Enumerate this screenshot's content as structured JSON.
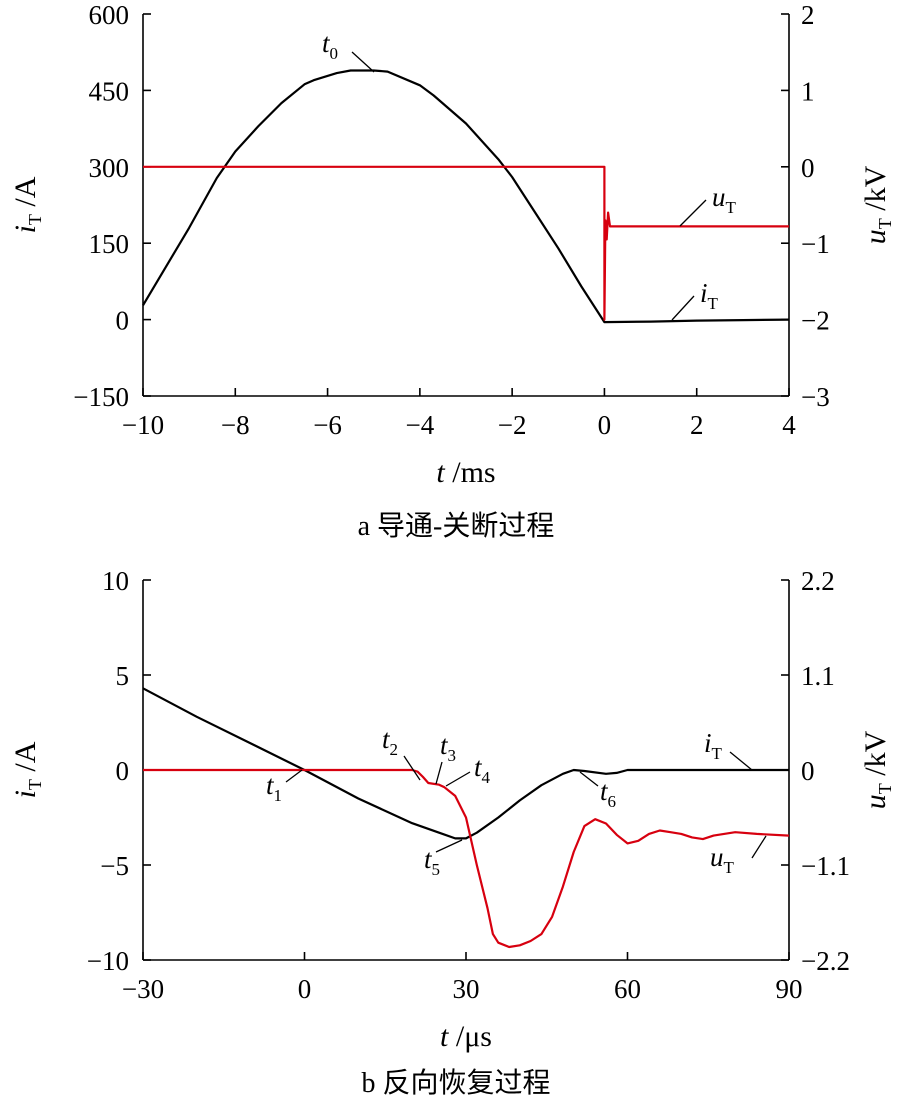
{
  "chart_data": [
    {
      "id": "a",
      "type": "line",
      "caption": "a  导通-关断过程",
      "xlabel": {
        "var": "t",
        "unit": "/ms"
      },
      "ylabel_left": {
        "var": "i",
        "sub": "T",
        "unit": "/A"
      },
      "ylabel_right": {
        "var": "u",
        "sub": "T",
        "unit": "/kV"
      },
      "xlim": [
        -10,
        4
      ],
      "xticks": [
        "−10",
        "−8",
        "−6",
        "−4",
        "−2",
        "0",
        "2",
        "4"
      ],
      "xtick_values": [
        -10,
        -8,
        -6,
        -4,
        -2,
        0,
        2,
        4
      ],
      "ylim_left": [
        -150,
        600
      ],
      "yticks_left": [
        "600",
        "450",
        "300",
        "150",
        "0",
        "−150"
      ],
      "ytick_values_left": [
        600,
        450,
        300,
        150,
        0,
        -150
      ],
      "ylim_right": [
        -3,
        2
      ],
      "yticks_right": [
        "2",
        "1",
        "0",
        "−1",
        "−2",
        "−3"
      ],
      "ytick_values_right": [
        2,
        1,
        0,
        -1,
        -2,
        -3
      ],
      "series": [
        {
          "name": "iT",
          "axis": "left",
          "color": "#000000",
          "points": [
            [
              -10,
              28
            ],
            [
              -9,
              180
            ],
            [
              -8.4,
              278
            ],
            [
              -8,
              330
            ],
            [
              -7.5,
              380
            ],
            [
              -7,
              425
            ],
            [
              -6.5,
              462
            ],
            [
              -6.3,
              470
            ],
            [
              -5.8,
              484
            ],
            [
              -5.5,
              489
            ],
            [
              -5,
              489
            ],
            [
              -4.7,
              487
            ],
            [
              -4,
              460
            ],
            [
              -3.7,
              440
            ],
            [
              -3,
              385
            ],
            [
              -2.3,
              315
            ],
            [
              -2,
              280
            ],
            [
              -1.5,
              210
            ],
            [
              -1,
              140
            ],
            [
              -0.5,
              65
            ],
            [
              0,
              -5
            ],
            [
              1,
              -4
            ],
            [
              2,
              -2
            ],
            [
              3,
              -1
            ],
            [
              4,
              0
            ]
          ]
        },
        {
          "name": "uT",
          "axis": "right",
          "color": "#d7000f",
          "points": [
            [
              -10,
              0
            ],
            [
              0,
              0
            ],
            [
              0,
              -2
            ],
            [
              0.02,
              -0.7
            ],
            [
              0.05,
              -0.95
            ],
            [
              0.08,
              -0.6
            ],
            [
              0.12,
              -0.78
            ],
            [
              4,
              -0.78
            ]
          ]
        }
      ],
      "annotations": [
        {
          "label": "t",
          "sub": "0",
          "x": -4.9,
          "y": 489,
          "axis": "left"
        },
        {
          "label": "u",
          "sub": "T",
          "x": 1.6,
          "y": -0.78,
          "axis": "right"
        },
        {
          "label": "i",
          "sub": "T",
          "x": 1.6,
          "y": -1,
          "axis": "left"
        }
      ]
    },
    {
      "id": "b",
      "type": "line",
      "caption": "b  反向恢复过程",
      "xlabel": {
        "var": "t",
        "unit": "/μs"
      },
      "ylabel_left": {
        "var": "i",
        "sub": "T",
        "unit": "/A"
      },
      "ylabel_right": {
        "var": "u",
        "sub": "T",
        "unit": "/kV"
      },
      "xlim": [
        -30,
        90
      ],
      "xticks": [
        "−30",
        "0",
        "30",
        "60",
        "90"
      ],
      "xtick_values": [
        -30,
        0,
        30,
        60,
        90
      ],
      "ylim_left": [
        -10,
        10
      ],
      "yticks_left": [
        "10",
        "5",
        "0",
        "−5",
        "−10"
      ],
      "ytick_values_left": [
        10,
        5,
        0,
        -5,
        -10
      ],
      "ylim_right": [
        -2.2,
        2.2
      ],
      "yticks_right": [
        "2.2",
        "1.1",
        "0",
        "−1.1",
        "−2.2"
      ],
      "ytick_values_right": [
        2.2,
        1.1,
        0,
        -1.1,
        -2.2
      ],
      "series": [
        {
          "name": "iT",
          "axis": "left",
          "color": "#000000",
          "points": [
            [
              -30,
              4.3
            ],
            [
              -20,
              2.8
            ],
            [
              -10,
              1.4
            ],
            [
              0,
              0
            ],
            [
              10,
              -1.5
            ],
            [
              20,
              -2.8
            ],
            [
              25,
              -3.3
            ],
            [
              28,
              -3.6
            ],
            [
              30,
              -3.6
            ],
            [
              32,
              -3.3
            ],
            [
              36,
              -2.5
            ],
            [
              40,
              -1.6
            ],
            [
              44,
              -0.8
            ],
            [
              48,
              -0.2
            ],
            [
              50,
              0
            ],
            [
              52,
              -0.05
            ],
            [
              56,
              -0.2
            ],
            [
              58,
              -0.15
            ],
            [
              60,
              0
            ],
            [
              70,
              0
            ],
            [
              80,
              0
            ],
            [
              90,
              0
            ]
          ]
        },
        {
          "name": "uT",
          "axis": "right",
          "color": "#d7000f",
          "points": [
            [
              -30,
              0
            ],
            [
              20,
              0
            ],
            [
              21,
              -0.02
            ],
            [
              22,
              -0.08
            ],
            [
              23,
              -0.15
            ],
            [
              25,
              -0.17
            ],
            [
              26,
              -0.2
            ],
            [
              28,
              -0.3
            ],
            [
              30,
              -0.55
            ],
            [
              32,
              -1.1
            ],
            [
              34,
              -1.6
            ],
            [
              35,
              -1.9
            ],
            [
              36,
              -2.0
            ],
            [
              38,
              -2.05
            ],
            [
              40,
              -2.03
            ],
            [
              42,
              -1.98
            ],
            [
              44,
              -1.9
            ],
            [
              46,
              -1.7
            ],
            [
              48,
              -1.35
            ],
            [
              50,
              -0.95
            ],
            [
              52,
              -0.65
            ],
            [
              54,
              -0.57
            ],
            [
              56,
              -0.62
            ],
            [
              58,
              -0.75
            ],
            [
              60,
              -0.85
            ],
            [
              62,
              -0.82
            ],
            [
              64,
              -0.74
            ],
            [
              66,
              -0.7
            ],
            [
              68,
              -0.72
            ],
            [
              70,
              -0.74
            ],
            [
              72,
              -0.78
            ],
            [
              74,
              -0.8
            ],
            [
              76,
              -0.76
            ],
            [
              80,
              -0.72
            ],
            [
              84,
              -0.74
            ],
            [
              90,
              -0.76
            ]
          ]
        }
      ],
      "annotations": [
        {
          "label": "t",
          "sub": "1",
          "x": 0,
          "y": 0,
          "axis": "left"
        },
        {
          "label": "t",
          "sub": "2",
          "x": 22,
          "y": -0.2,
          "axis": "left"
        },
        {
          "label": "t",
          "sub": "3",
          "x": 24,
          "y": -0.7,
          "axis": "left"
        },
        {
          "label": "t",
          "sub": "4",
          "x": 26,
          "y": -0.8,
          "axis": "left"
        },
        {
          "label": "t",
          "sub": "5",
          "x": 30,
          "y": -3.6,
          "axis": "left"
        },
        {
          "label": "t",
          "sub": "6",
          "x": 52,
          "y": -0.1,
          "axis": "left"
        },
        {
          "label": "i",
          "sub": "T",
          "x": 84,
          "y": 0,
          "axis": "left"
        },
        {
          "label": "u",
          "sub": "T",
          "x": 82,
          "y": -0.72,
          "axis": "right"
        }
      ]
    }
  ]
}
